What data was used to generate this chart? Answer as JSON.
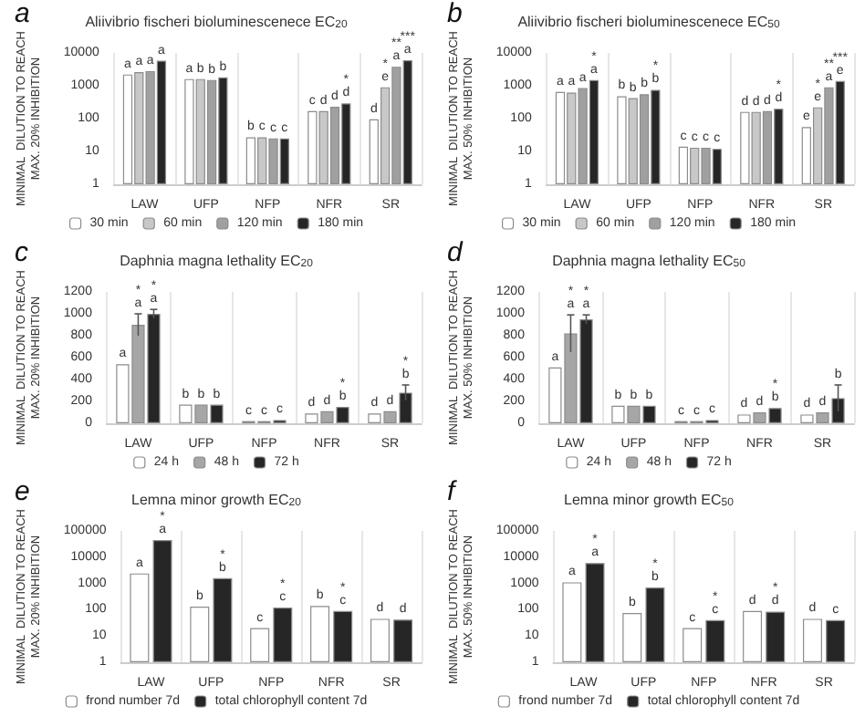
{
  "chart_data": [
    {
      "type": "bar",
      "title": "Aliivibrio fischeri bioluminescenece EC$_{20}$",
      "ylabel": "MINIMAL  DILUTION TO REACH\nMAX. 20% INHIBITION",
      "annotations": [
        "a"
      ],
      "categories": [
        "LAW",
        "UFP",
        "NFP",
        "NFR",
        "SR"
      ],
      "log": true,
      "ylim": [
        1,
        10000
      ],
      "yticks": [
        1,
        10,
        100,
        1000,
        10000
      ],
      "grid": "x",
      "legend": "bottom",
      "series": [
        {
          "name": "30 min",
          "color": "#ffffff",
          "values": [
            2200,
            1600,
            27,
            170,
            95
          ],
          "value_labels": [
            "a",
            "a",
            "b",
            "c",
            "d"
          ]
        },
        {
          "name": "60 min",
          "color": "#c8c8c8",
          "values": [
            2600,
            1600,
            27,
            170,
            900
          ],
          "value_labels": [
            "a",
            "b",
            "c",
            "d",
            "*\ne"
          ]
        },
        {
          "name": "120 min",
          "color": "#a0a0a0",
          "values": [
            2800,
            1500,
            25,
            230,
            3800
          ],
          "value_labels": [
            "a",
            "b",
            "c",
            "d",
            "**\na"
          ]
        },
        {
          "name": "180 min",
          "color": "#262626",
          "values": [
            5800,
            1800,
            25,
            290,
            6000
          ],
          "value_labels": [
            "a",
            "b",
            "c",
            "*\nd",
            "***\na"
          ]
        }
      ]
    },
    {
      "type": "bar",
      "title": "Aliivibrio fischeri bioluminescenece EC$_{50}$",
      "ylabel": "MINIMAL  DILUTION TO REACH\nMAX. 50% INHIBITION",
      "annotations": [
        "b"
      ],
      "categories": [
        "LAW",
        "UFP",
        "NFP",
        "NFR",
        "SR"
      ],
      "log": true,
      "ylim": [
        1,
        10000
      ],
      "yticks": [
        1,
        10,
        100,
        1000,
        10000
      ],
      "grid": "x",
      "legend": "bottom",
      "series": [
        {
          "name": "30 min",
          "color": "#ffffff",
          "values": [
            650,
            480,
            14,
            160,
            55
          ],
          "value_labels": [
            "a",
            "b",
            "c",
            "d",
            "e"
          ]
        },
        {
          "name": "60 min",
          "color": "#c8c8c8",
          "values": [
            620,
            420,
            13,
            160,
            220
          ],
          "value_labels": [
            "a",
            "b",
            "c",
            "d",
            "*\ne"
          ]
        },
        {
          "name": "120 min",
          "color": "#a0a0a0",
          "values": [
            850,
            550,
            13,
            170,
            900
          ],
          "value_labels": [
            "a",
            "b",
            "c",
            "d",
            "**\na"
          ]
        },
        {
          "name": "180 min",
          "color": "#262626",
          "values": [
            1500,
            750,
            12,
            200,
            1400
          ],
          "value_labels": [
            "*\na",
            "*\nb",
            "c",
            "*\nd",
            "***\ne"
          ]
        }
      ]
    },
    {
      "type": "bar",
      "title": "Daphnia magna lethality EC$_{20}$",
      "ylabel": "MINIMAL  DILUTION TO REACH\nMAX. 20% INHIBITION",
      "annotations": [
        "c"
      ],
      "categories": [
        "LAW",
        "UFP",
        "NFP",
        "NFR",
        "SR"
      ],
      "ylim": [
        0,
        1200
      ],
      "yticks": [
        0,
        200,
        400,
        600,
        800,
        1000,
        1200
      ],
      "grid": "x",
      "legend": "bottom",
      "series": [
        {
          "name": "24 h",
          "color": "#ffffff",
          "values": [
            540,
            170,
            20,
            90,
            90
          ],
          "value_labels": [
            "a",
            "b",
            "c",
            "d",
            "d"
          ]
        },
        {
          "name": "48 h",
          "color": "#a6a6a6",
          "values": [
            900,
            170,
            20,
            110,
            110
          ],
          "value_labels": [
            "*\na",
            "b",
            "c",
            "d",
            "d"
          ],
          "errors": [
            100,
            null,
            null,
            null,
            null
          ]
        },
        {
          "name": "72 h",
          "color": "#262626",
          "values": [
            1000,
            170,
            30,
            150,
            280
          ],
          "value_labels": [
            "*\na",
            "b",
            "c",
            "*\nb",
            "*\nb"
          ],
          "errors": [
            40,
            null,
            null,
            null,
            70
          ]
        }
      ]
    },
    {
      "type": "bar",
      "title": "Daphnia magna lethality EC$_{50}$",
      "ylabel": "MINIMAL  DILUTION TO REACH\nMAX. 50% INHIBITION",
      "annotations": [
        "d"
      ],
      "categories": [
        "LAW",
        "UFP",
        "NFP",
        "NFR",
        "SR"
      ],
      "ylim": [
        0,
        1200
      ],
      "yticks": [
        0,
        200,
        400,
        600,
        800,
        1000,
        1200
      ],
      "grid": "x",
      "legend": "bottom",
      "series": [
        {
          "name": "24 h",
          "color": "#ffffff",
          "values": [
            510,
            160,
            20,
            80,
            80
          ],
          "value_labels": [
            "a",
            "b",
            "c",
            "d",
            "d"
          ]
        },
        {
          "name": "48 h",
          "color": "#a6a6a6",
          "values": [
            820,
            160,
            20,
            100,
            100
          ],
          "value_labels": [
            "*\na",
            "b",
            "c",
            "d",
            "d"
          ],
          "errors": [
            170,
            null,
            null,
            null,
            null
          ]
        },
        {
          "name": "72 h",
          "color": "#262626",
          "values": [
            950,
            160,
            30,
            140,
            230
          ],
          "value_labels": [
            "*\na",
            "b",
            "c",
            "*\nb",
            "b"
          ],
          "errors": [
            40,
            null,
            null,
            null,
            120
          ]
        }
      ]
    },
    {
      "type": "bar",
      "title": "Lemna minor growth EC$_{20}$",
      "ylabel": "MINIMAL  DILUTION TO REACH\nMAX. 20% INHIBITION",
      "annotations": [
        "e"
      ],
      "categories": [
        "LAW",
        "UFP",
        "NFP",
        "NFR",
        "SR"
      ],
      "log": true,
      "ylim": [
        1,
        100000
      ],
      "yticks": [
        1,
        10,
        100,
        1000,
        10000,
        100000
      ],
      "grid": "x",
      "legend": "bottom",
      "series": [
        {
          "name": "frond number 7d",
          "color": "#ffffff",
          "values": [
            2400,
            130,
            20,
            140,
            45
          ],
          "value_labels": [
            "a",
            "b",
            "c",
            "b",
            "d"
          ]
        },
        {
          "name": "total chlorophyll content 7d",
          "color": "#262626",
          "values": [
            45000,
            1600,
            120,
            90,
            42
          ],
          "value_labels": [
            "*\na",
            "*\nb",
            "*\nc",
            "*\nc",
            "d"
          ]
        }
      ]
    },
    {
      "type": "bar",
      "title": "Lemna minor growth EC$_{50}$",
      "ylabel": "MINIMAL  DILUTION TO REACH\nMAX. 50% INHIBITION",
      "annotations": [
        "f"
      ],
      "categories": [
        "LAW",
        "UFP",
        "NFP",
        "NFR",
        "SR"
      ],
      "log": true,
      "ylim": [
        1,
        100000
      ],
      "yticks": [
        1,
        10,
        100,
        1000,
        10000,
        100000
      ],
      "grid": "x",
      "legend": "bottom",
      "series": [
        {
          "name": "frond number 7d",
          "color": "#ffffff",
          "values": [
            1100,
            75,
            20,
            90,
            45
          ],
          "value_labels": [
            "a",
            "b",
            "c",
            "d",
            "d"
          ]
        },
        {
          "name": "total chlorophyll content 7d",
          "color": "#262626",
          "values": [
            6000,
            700,
            40,
            85,
            40
          ],
          "value_labels": [
            "*\na",
            "*\nb",
            "*\nc",
            "*\nd",
            "c"
          ]
        }
      ]
    }
  ]
}
